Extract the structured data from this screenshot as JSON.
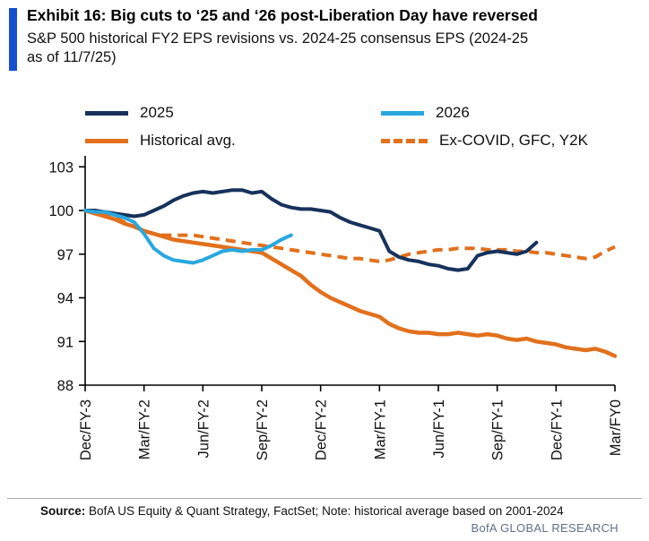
{
  "header": {
    "title": "Exhibit 16: Big cuts to ‘25 and ‘26 post-Liberation Day have reversed",
    "subtitle_line1": "S&P 500 historical FY2 EPS revisions vs. 2024-25 consensus EPS (2024-25",
    "subtitle_line2": "as of 11/7/25)"
  },
  "colors": {
    "accent_bar": "#1450d0",
    "navy": "#16325c",
    "light_blue": "#29a8df",
    "orange": "#e2701c",
    "brand_text": "#5f718e"
  },
  "legend": {
    "items": [
      {
        "label": "2025",
        "color": "#16325c",
        "dash": false
      },
      {
        "label": "2026",
        "color": "#29a8df",
        "dash": false
      },
      {
        "label": "Historical avg.",
        "color": "#e2701c",
        "dash": false
      },
      {
        "label": "Ex-COVID, GFC, Y2K",
        "color": "#e2701c",
        "dash": true
      }
    ]
  },
  "footer": {
    "source_label": "Source:",
    "source_text": " BofA US Equity & Quant Strategy, FactSet; Note: historical average based on 2001-2024",
    "brand": "BofA GLOBAL RESEARCH"
  },
  "chart_data": {
    "type": "line",
    "title": "S&P 500 historical FY2 EPS revisions vs. 2024-25 consensus EPS (indexed, FY2 start = 100)",
    "xlabel": "",
    "ylabel": "",
    "grid": false,
    "legend_position": "top",
    "xlim": [
      0,
      27
    ],
    "ylim": [
      88,
      104
    ],
    "yticks": [
      88,
      91,
      94,
      97,
      100,
      103
    ],
    "xtick_months": [
      0,
      3,
      6,
      9,
      12,
      15,
      18,
      21,
      24,
      27
    ],
    "xtick_labels": [
      "Dec/FY-3",
      "Mar/FY-2",
      "Jun/FY-2",
      "Sep/FY-2",
      "Dec/FY-2",
      "Mar/FY-1",
      "Jun/FY-1",
      "Sep/FY-1",
      "Dec/FY-1",
      "Mar/FY0"
    ],
    "series": [
      {
        "name": "2025",
        "color": "#16325c",
        "width": 4,
        "dash": "",
        "z": 2,
        "x_start": 0,
        "x_step": 0.5,
        "values": [
          100.0,
          100.0,
          99.9,
          99.8,
          99.7,
          99.6,
          99.7,
          100.0,
          100.3,
          100.7,
          101.0,
          101.2,
          101.3,
          101.2,
          101.3,
          101.4,
          101.4,
          101.2,
          101.3,
          100.8,
          100.4,
          100.2,
          100.1,
          100.1,
          100.0,
          99.9,
          99.5,
          99.2,
          99.0,
          98.8,
          98.6,
          97.2,
          96.8,
          96.6,
          96.5,
          96.3,
          96.2,
          96.0,
          95.9,
          96.0,
          96.9,
          97.1,
          97.2,
          97.1,
          97.0,
          97.2,
          97.8
        ]
      },
      {
        "name": "2026",
        "color": "#29a8df",
        "width": 4,
        "dash": "",
        "z": 3,
        "x_start": 0,
        "x_step": 0.5,
        "values": [
          100.0,
          99.9,
          99.9,
          99.7,
          99.5,
          99.2,
          98.4,
          97.4,
          96.9,
          96.6,
          96.5,
          96.4,
          96.6,
          96.9,
          97.2,
          97.3,
          97.2,
          97.3,
          97.3,
          97.6,
          98.0,
          98.3
        ]
      },
      {
        "name": "Historical avg.",
        "color": "#e2701c",
        "width": 4.5,
        "dash": "",
        "z": 1,
        "x_start": 0,
        "x_step": 0.5,
        "values": [
          100.0,
          99.8,
          99.6,
          99.4,
          99.1,
          98.9,
          98.6,
          98.4,
          98.2,
          98.0,
          97.9,
          97.8,
          97.7,
          97.6,
          97.5,
          97.4,
          97.3,
          97.2,
          97.1,
          96.7,
          96.3,
          95.9,
          95.5,
          94.9,
          94.4,
          94.0,
          93.7,
          93.4,
          93.1,
          92.9,
          92.7,
          92.2,
          91.9,
          91.7,
          91.6,
          91.6,
          91.5,
          91.5,
          91.6,
          91.5,
          91.4,
          91.5,
          91.4,
          91.2,
          91.1,
          91.2,
          91.0,
          90.9,
          90.8,
          90.6,
          90.5,
          90.4,
          90.5,
          90.3,
          90.0
        ]
      },
      {
        "name": "Ex-COVID, GFC, Y2K",
        "color": "#e2701c",
        "width": 4,
        "dash": "11 7",
        "z": 0,
        "x_start": 0,
        "x_step": 0.5,
        "values": [
          100.0,
          99.9,
          99.7,
          99.5,
          99.2,
          98.9,
          98.6,
          98.4,
          98.3,
          98.3,
          98.3,
          98.3,
          98.2,
          98.1,
          98.0,
          97.9,
          97.8,
          97.7,
          97.6,
          97.5,
          97.4,
          97.3,
          97.2,
          97.1,
          97.0,
          96.9,
          96.8,
          96.7,
          96.7,
          96.6,
          96.5,
          96.6,
          96.8,
          97.0,
          97.1,
          97.2,
          97.3,
          97.3,
          97.4,
          97.4,
          97.4,
          97.3,
          97.3,
          97.3,
          97.2,
          97.2,
          97.1,
          97.1,
          97.0,
          96.9,
          96.8,
          96.7,
          96.8,
          97.2,
          97.5
        ]
      }
    ]
  }
}
